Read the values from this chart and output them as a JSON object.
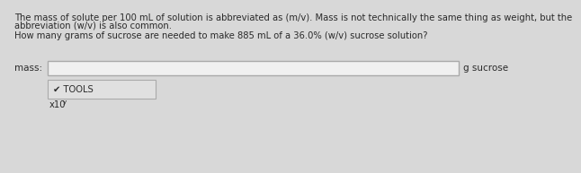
{
  "bg_color": "#d8d8d8",
  "panel_color": "#e4e4e4",
  "text_color": "#2a2a2a",
  "paragraph1_line1": "The mass of solute per 100 mL of solution is abbreviated as (m/v). Mass is not technically the same thing as weight, but the",
  "paragraph1_line2": "abbreviation (w/v) is also common.",
  "paragraph2": "How many grams of sucrose are needed to make 885 mL of a 36.0% (w/v) sucrose solution?",
  "label_mass": "mass:",
  "label_unit": "g sucrose",
  "tools_text": "✔ TOOLS",
  "x10_base": "x10",
  "x10_exp": "y",
  "input_box_color": "#f0f0f0",
  "input_box_border": "#aaaaaa",
  "tools_box_color": "#e0e0e0",
  "tools_box_border": "#aaaaaa",
  "fontsize_main": 7.2,
  "fontsize_label": 7.5
}
